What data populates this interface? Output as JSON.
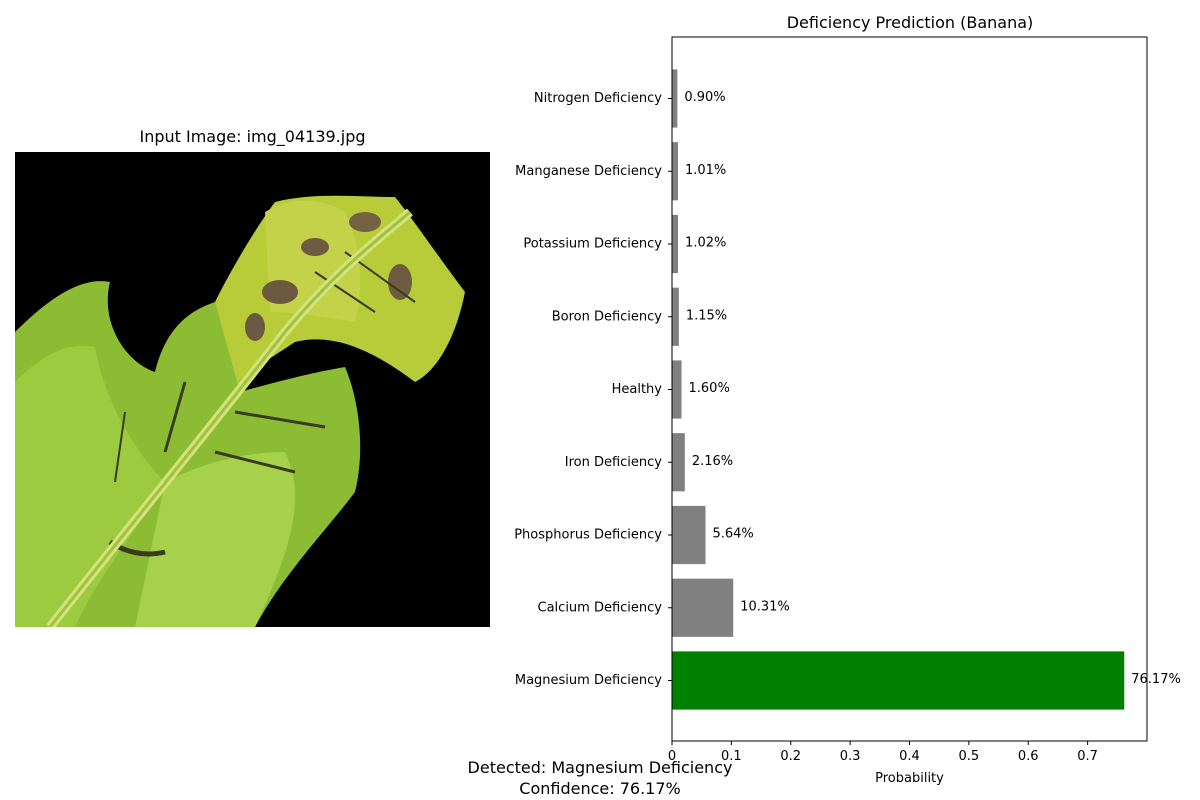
{
  "image_panel": {
    "title": "Input Image: img_04139.jpg",
    "subject": "banana-leaf-photo"
  },
  "chart_data": {
    "type": "bar",
    "orientation": "horizontal",
    "title": "Deficiency Prediction (Banana)",
    "xlabel": "Probability",
    "ylabel": "",
    "xlim": [
      0,
      0.8
    ],
    "xticks": [
      0,
      0.1,
      0.2,
      0.3,
      0.4,
      0.5,
      0.6,
      0.7
    ],
    "grid": false,
    "categories": [
      "Nitrogen Deficiency",
      "Manganese Deficiency",
      "Potassium Deficiency",
      "Boron Deficiency",
      "Healthy",
      "Iron Deficiency",
      "Phosphorus Deficiency",
      "Calcium Deficiency",
      "Magnesium Deficiency"
    ],
    "values": [
      0.009,
      0.0101,
      0.0102,
      0.0115,
      0.016,
      0.0216,
      0.0564,
      0.1031,
      0.7617
    ],
    "data_labels": [
      "0.90%",
      "1.01%",
      "1.02%",
      "1.15%",
      "1.60%",
      "2.16%",
      "5.64%",
      "10.31%",
      "76.17%"
    ],
    "highlight_category": "Magnesium Deficiency",
    "colors": {
      "default_bar": "#808080",
      "highlight_bar": "#008000"
    }
  },
  "footer": {
    "detected": "Detected: Magnesium Deficiency",
    "confidence": "Confidence: 76.17%"
  }
}
